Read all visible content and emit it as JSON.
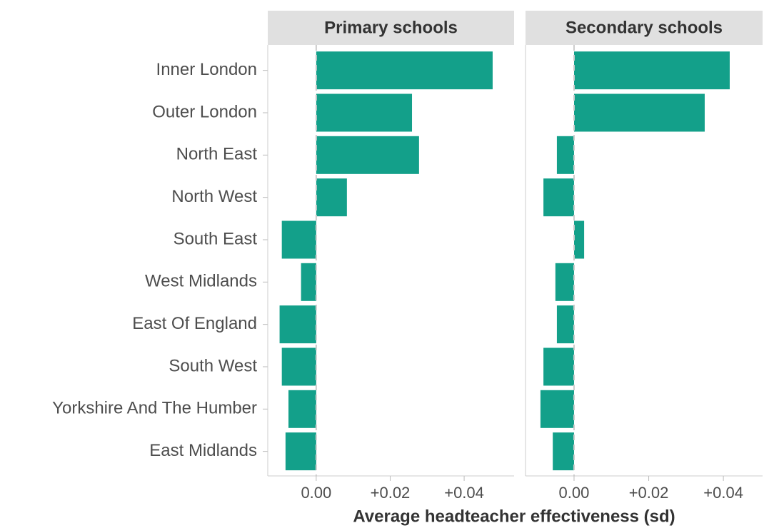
{
  "chart_data": [
    {
      "type": "bar",
      "orientation": "horizontal",
      "title": "Primary schools",
      "xlabel": "Average headteacher effectiveness (sd)",
      "categories": [
        "Inner London",
        "Outer London",
        "North East",
        "North West",
        "South East",
        "West Midlands",
        "East Of England",
        "South West",
        "Yorkshire And The Humber",
        "East Midlands"
      ],
      "values": [
        0.0477,
        0.0259,
        0.0278,
        0.0083,
        -0.0093,
        -0.0041,
        -0.0099,
        -0.0093,
        -0.0075,
        -0.0083
      ],
      "color": "#13a08a",
      "xlim": [
        -0.0131,
        0.0535
      ],
      "xticks": [
        {
          "value": 0,
          "label": "0.00"
        },
        {
          "value": 0.02,
          "label": "+0.02"
        },
        {
          "value": 0.04,
          "label": "+0.04"
        }
      ]
    },
    {
      "type": "bar",
      "orientation": "horizontal",
      "title": "Secondary schools",
      "values": [
        0.0417,
        0.035,
        -0.0046,
        -0.0082,
        0.0027,
        -0.005,
        -0.0046,
        -0.0082,
        -0.009,
        -0.0057
      ],
      "color": "#13a08a",
      "xlim": [
        -0.013,
        0.0505
      ],
      "xticks": [
        {
          "value": 0,
          "label": "0.00"
        },
        {
          "value": 0.02,
          "label": "+0.02"
        },
        {
          "value": 0.04,
          "label": "+0.04"
        }
      ]
    }
  ]
}
